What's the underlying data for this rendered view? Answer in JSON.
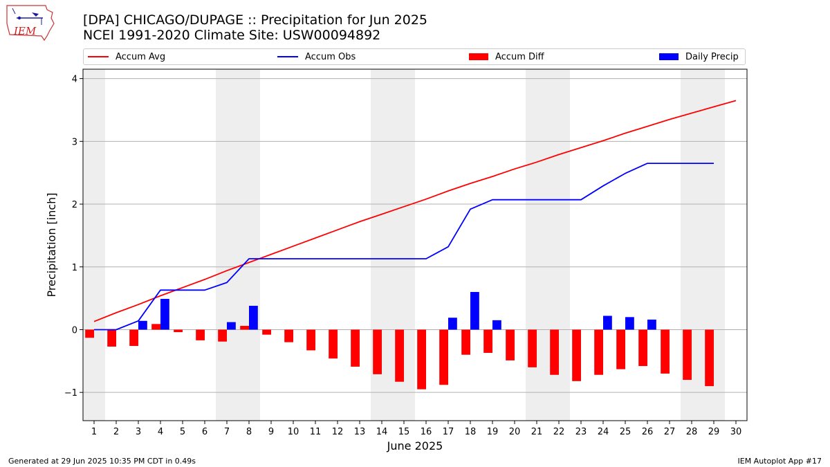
{
  "header": {
    "title_line1": "[DPA] CHICAGO/DUPAGE :: Precipitation for Jun 2025",
    "title_line2": "NCEI 1991-2020 Climate Site: USW00094892",
    "logo_text": "IEM"
  },
  "legend": {
    "accum_avg": "Accum Avg",
    "accum_obs": "Accum Obs",
    "accum_diff": "Accum Diff",
    "daily_precip": "Daily Precip"
  },
  "footer": {
    "left": "Generated at 29 Jun 2025 10:35 PM CDT in 0.49s",
    "right": "IEM Autoplot App #17"
  },
  "colors": {
    "accum_avg": "#ff0000",
    "accum_obs": "#0000ff",
    "accum_diff": "#ff0000",
    "daily_precip": "#0000ff",
    "weekend_shade": "#eeeeee",
    "grid": "#b0b0b0"
  },
  "chart_data": {
    "type": "bar",
    "xlabel": "June 2025",
    "ylabel": "Precipitation [inch]",
    "xlim": [
      0.5,
      30.5
    ],
    "ylim": [
      -1.45,
      4.15
    ],
    "yticks": [
      -1,
      0,
      1,
      2,
      3,
      4
    ],
    "ytick_labels": [
      "−1",
      "0",
      "1",
      "2",
      "3",
      "4"
    ],
    "xticks": [
      1,
      2,
      3,
      4,
      5,
      6,
      7,
      8,
      9,
      10,
      11,
      12,
      13,
      14,
      15,
      16,
      17,
      18,
      19,
      20,
      21,
      22,
      23,
      24,
      25,
      26,
      27,
      28,
      29,
      30
    ],
    "grid": "horizontal",
    "legend_position": "top",
    "weekend_bands": [
      [
        0.5,
        1.5
      ],
      [
        6.5,
        8.5
      ],
      [
        13.5,
        15.5
      ],
      [
        20.5,
        22.5
      ],
      [
        27.5,
        29.5
      ]
    ],
    "series": [
      {
        "name": "Accum Avg",
        "kind": "line",
        "x": [
          1,
          2,
          3,
          4,
          5,
          6,
          7,
          8,
          9,
          10,
          11,
          12,
          13,
          14,
          15,
          16,
          17,
          18,
          19,
          20,
          21,
          22,
          23,
          24,
          25,
          26,
          27,
          28,
          29,
          30
        ],
        "values": [
          0.13,
          0.27,
          0.4,
          0.54,
          0.67,
          0.8,
          0.94,
          1.07,
          1.2,
          1.33,
          1.46,
          1.59,
          1.72,
          1.84,
          1.96,
          2.08,
          2.21,
          2.33,
          2.44,
          2.56,
          2.67,
          2.79,
          2.9,
          3.01,
          3.13,
          3.24,
          3.35,
          3.45,
          3.55,
          3.65
        ]
      },
      {
        "name": "Accum Obs",
        "kind": "line",
        "x": [
          1,
          2,
          3,
          4,
          5,
          6,
          7,
          8,
          9,
          10,
          11,
          12,
          13,
          14,
          15,
          16,
          17,
          18,
          19,
          20,
          21,
          22,
          23,
          24,
          25,
          26,
          27,
          28,
          29
        ],
        "values": [
          0.0,
          0.0,
          0.14,
          0.63,
          0.63,
          0.63,
          0.75,
          1.13,
          1.13,
          1.13,
          1.13,
          1.13,
          1.13,
          1.13,
          1.13,
          1.13,
          1.32,
          1.92,
          2.07,
          2.07,
          2.07,
          2.07,
          2.07,
          2.29,
          2.49,
          2.65,
          2.65,
          2.65,
          2.65
        ]
      },
      {
        "name": "Accum Diff",
        "kind": "bar",
        "x": [
          1,
          2,
          3,
          4,
          5,
          6,
          7,
          8,
          9,
          10,
          11,
          12,
          13,
          14,
          15,
          16,
          17,
          18,
          19,
          20,
          21,
          22,
          23,
          24,
          25,
          26,
          27,
          28,
          29
        ],
        "values": [
          -0.13,
          -0.27,
          -0.26,
          0.09,
          -0.04,
          -0.17,
          -0.19,
          0.06,
          -0.08,
          -0.2,
          -0.33,
          -0.46,
          -0.59,
          -0.71,
          -0.83,
          -0.95,
          -0.88,
          -0.4,
          -0.37,
          -0.49,
          -0.6,
          -0.72,
          -0.82,
          -0.72,
          -0.63,
          -0.58,
          -0.7,
          -0.8,
          -0.9
        ]
      },
      {
        "name": "Daily Precip",
        "kind": "bar",
        "x": [
          3,
          4,
          7,
          8,
          17,
          18,
          19,
          24,
          25,
          26
        ],
        "values": [
          0.14,
          0.49,
          0.12,
          0.38,
          0.19,
          0.6,
          0.15,
          0.22,
          0.2,
          0.16
        ]
      }
    ]
  }
}
